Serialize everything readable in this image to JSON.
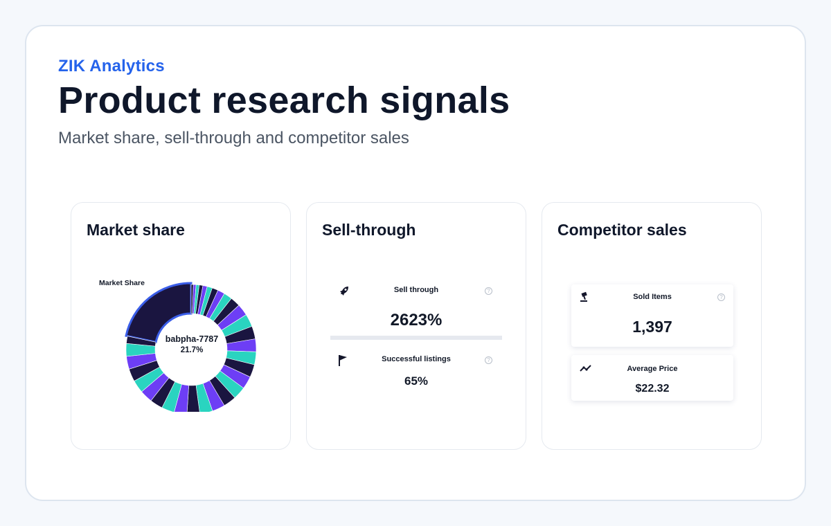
{
  "header": {
    "brand": "ZIK Analytics",
    "title": "Product research signals",
    "subtitle": "Market share, sell-through and competitor sales"
  },
  "cards": {
    "market_share": {
      "title": "Market share",
      "widget_label": "Market Share",
      "center_name": "babpha-7787",
      "center_value": "21.7%",
      "highlight_share": 0.217,
      "colors": {
        "dark": "#1a1540",
        "violet": "#6d3ef5",
        "teal": "#2ad4c0",
        "highlight": "#3b5ee8"
      }
    },
    "sell_through": {
      "title": "Sell-through",
      "primary": {
        "label": "Sell through",
        "value": "2623%",
        "icon": "rocket-icon"
      },
      "secondary": {
        "label": "Successful listings",
        "value": "65%",
        "icon": "flag-icon"
      }
    },
    "competitor_sales": {
      "title": "Competitor sales",
      "primary": {
        "label": "Sold Items",
        "value": "1,397",
        "icon": "gavel-icon"
      },
      "secondary": {
        "label": "Average Price",
        "value": "$22.32",
        "icon": "trend-icon"
      }
    }
  },
  "help_glyph": "?"
}
